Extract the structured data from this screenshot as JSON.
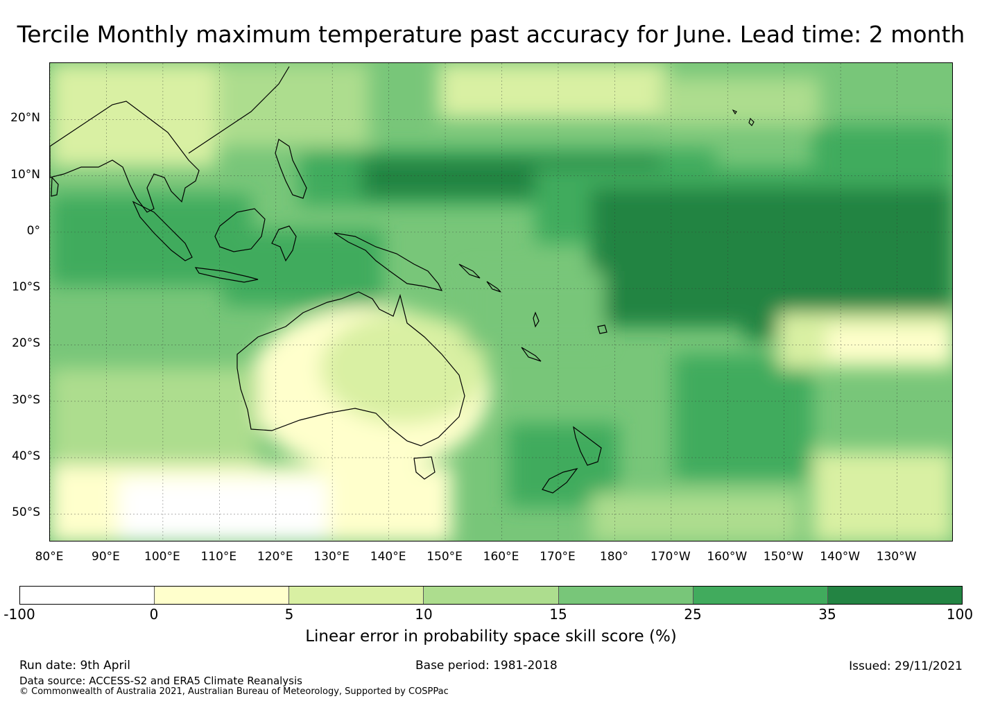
{
  "title": "Tercile Monthly maximum temperature past accuracy for June. Lead time: 2 month",
  "map": {
    "lat_labels": [
      "20°N",
      "10°N",
      "0°",
      "10°S",
      "20°S",
      "30°S",
      "40°S",
      "50°S"
    ],
    "lon_labels": [
      "80°E",
      "90°E",
      "100°E",
      "110°E",
      "120°E",
      "130°E",
      "140°E",
      "150°E",
      "160°E",
      "170°E",
      "180°",
      "170°W",
      "160°W",
      "150°W",
      "140°W",
      "130°W"
    ],
    "lat_values": [
      20,
      10,
      0,
      -10,
      -20,
      -30,
      -40,
      -50
    ],
    "lon_values": [
      80,
      90,
      100,
      110,
      120,
      130,
      140,
      150,
      160,
      170,
      180,
      190,
      200,
      210,
      220,
      230
    ],
    "extent": {
      "lon_min": 80,
      "lon_max": 240,
      "lat_min": -55,
      "lat_max": 30
    }
  },
  "colorbar": {
    "ticks": [
      "-100",
      "0",
      "5",
      "10",
      "15",
      "25",
      "35",
      "100"
    ],
    "colors": [
      "#ffffff",
      "#ffffcc",
      "#d9f0a3",
      "#addd8e",
      "#78c679",
      "#41ab5d",
      "#238443"
    ],
    "label": "Linear error in probability space skill score (%)"
  },
  "footer": {
    "run_date": "Run date: 9th April",
    "base_period": "Base period: 1981-2018",
    "issued": "Issued: 29/11/2021",
    "data_source": "Data source: ACCESS-S2 and ERA5 Climate Reanalysis",
    "copyright": "© Commonwealth of Australia 2021, Australian Bureau of Meteorology, Supported by COSPPac"
  }
}
